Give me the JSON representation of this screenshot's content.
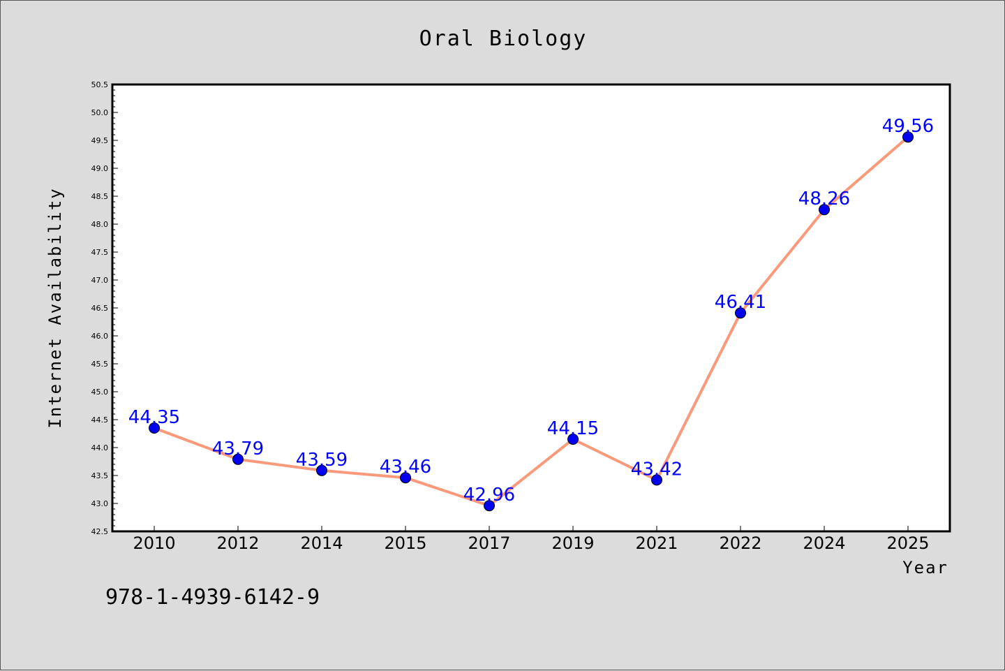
{
  "chart_data": {
    "type": "line",
    "title": "Oral Biology",
    "xlabel": "Year",
    "ylabel": "Internet Availability",
    "categories": [
      "2010",
      "2012",
      "2014",
      "2015",
      "2017",
      "2019",
      "2021",
      "2022",
      "2024",
      "2025"
    ],
    "series": [
      {
        "values": [
          44.35,
          43.79,
          43.59,
          43.46,
          42.96,
          44.15,
          43.42,
          46.41,
          48.26,
          49.56
        ],
        "labels": [
          "44.35",
          "43.79",
          "43.59",
          "43.46",
          "42.96",
          "44.15",
          "43.42",
          "46.41",
          "48.26",
          "49.56"
        ],
        "line_color": "#fa9a7a",
        "marker_color": "#0000ee"
      }
    ],
    "ylim": [
      42.5,
      50.5
    ],
    "yticks": [
      "42.5",
      "43.0",
      "43.5",
      "44.0",
      "44.5",
      "45.0",
      "45.5",
      "46.0",
      "46.5",
      "47.0",
      "47.5",
      "48.0",
      "48.5",
      "49.0",
      "49.5",
      "50.0",
      "50.5"
    ],
    "grid": false,
    "legend": "none"
  },
  "footer": {
    "isbn": "978-1-4939-6142-9"
  }
}
